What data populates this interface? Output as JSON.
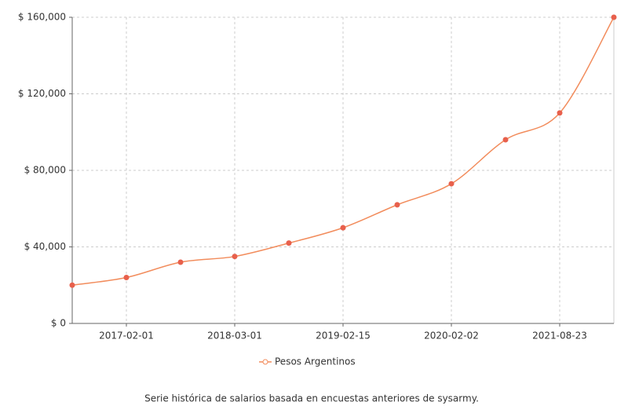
{
  "chart_data": {
    "type": "line",
    "categories": [
      null,
      "2017-02-01",
      null,
      "2018-03-01",
      null,
      "2019-02-15",
      null,
      "2020-02-02",
      null,
      "2021-08-23",
      null
    ],
    "series": [
      {
        "name": "Pesos Argentinos",
        "color": "#f28c5c",
        "values": [
          20000,
          24000,
          32000,
          35000,
          42000,
          50000,
          62000,
          73000,
          96000,
          110000,
          160000
        ]
      }
    ],
    "ylim": [
      0,
      160000
    ],
    "yticks": [
      {
        "value": 0,
        "label": "$ 0"
      },
      {
        "value": 40000,
        "label": "$ 40,000"
      },
      {
        "value": 80000,
        "label": "$ 80,000"
      },
      {
        "value": 120000,
        "label": "$ 120,000"
      },
      {
        "value": 160000,
        "label": "$ 160,000"
      }
    ],
    "grid": true,
    "caption": "Serie histórica de salarios basada en encuestas anteriores de sysarmy."
  }
}
